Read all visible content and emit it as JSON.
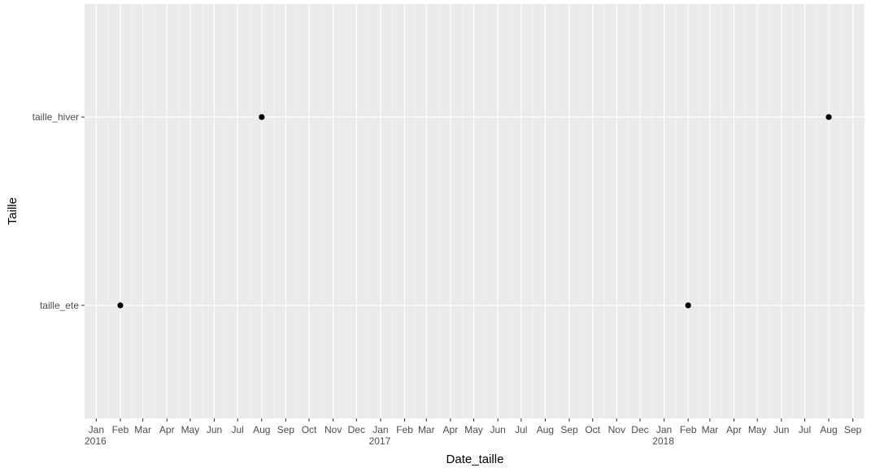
{
  "chart_data": {
    "type": "scatter",
    "x_label": "Date_taille",
    "y_label": "Taille",
    "y_categories": [
      "taille_ete",
      "taille_hiver"
    ],
    "x": [
      "2016-02",
      "2016-08",
      "2018-02",
      "2018-08"
    ],
    "values": [
      "taille_ete",
      "taille_hiver",
      "taille_ete",
      "taille_hiver"
    ],
    "color": "#000000",
    "xlim": [
      "2015-12-17",
      "2018-09-16"
    ],
    "xticks": [
      {
        "value": "2016-01",
        "label": "Jan\n2016"
      },
      {
        "value": "2016-02",
        "label": "Feb"
      },
      {
        "value": "2016-03",
        "label": "Mar"
      },
      {
        "value": "2016-04",
        "label": "Apr"
      },
      {
        "value": "2016-05",
        "label": "May"
      },
      {
        "value": "2016-06",
        "label": "Jun"
      },
      {
        "value": "2016-07",
        "label": "Jul"
      },
      {
        "value": "2016-08",
        "label": "Aug"
      },
      {
        "value": "2016-09",
        "label": "Sep"
      },
      {
        "value": "2016-10",
        "label": "Oct"
      },
      {
        "value": "2016-11",
        "label": "Nov"
      },
      {
        "value": "2016-12",
        "label": "Dec"
      },
      {
        "value": "2017-01",
        "label": "Jan\n2017"
      },
      {
        "value": "2017-02",
        "label": "Feb"
      },
      {
        "value": "2017-03",
        "label": "Mar"
      },
      {
        "value": "2017-04",
        "label": "Apr"
      },
      {
        "value": "2017-05",
        "label": "May"
      },
      {
        "value": "2017-06",
        "label": "Jun"
      },
      {
        "value": "2017-07",
        "label": "Jul"
      },
      {
        "value": "2017-08",
        "label": "Aug"
      },
      {
        "value": "2017-09",
        "label": "Sep"
      },
      {
        "value": "2017-10",
        "label": "Oct"
      },
      {
        "value": "2017-11",
        "label": "Nov"
      },
      {
        "value": "2017-12",
        "label": "Dec"
      },
      {
        "value": "2018-01",
        "label": "Jan\n2018"
      },
      {
        "value": "2018-02",
        "label": "Feb"
      },
      {
        "value": "2018-03",
        "label": "Mar"
      },
      {
        "value": "2018-04",
        "label": "Apr"
      },
      {
        "value": "2018-05",
        "label": "May"
      },
      {
        "value": "2018-06",
        "label": "Jun"
      },
      {
        "value": "2018-07",
        "label": "Jul"
      },
      {
        "value": "2018-08",
        "label": "Aug"
      },
      {
        "value": "2018-09",
        "label": "Sep"
      }
    ],
    "grid": true
  }
}
